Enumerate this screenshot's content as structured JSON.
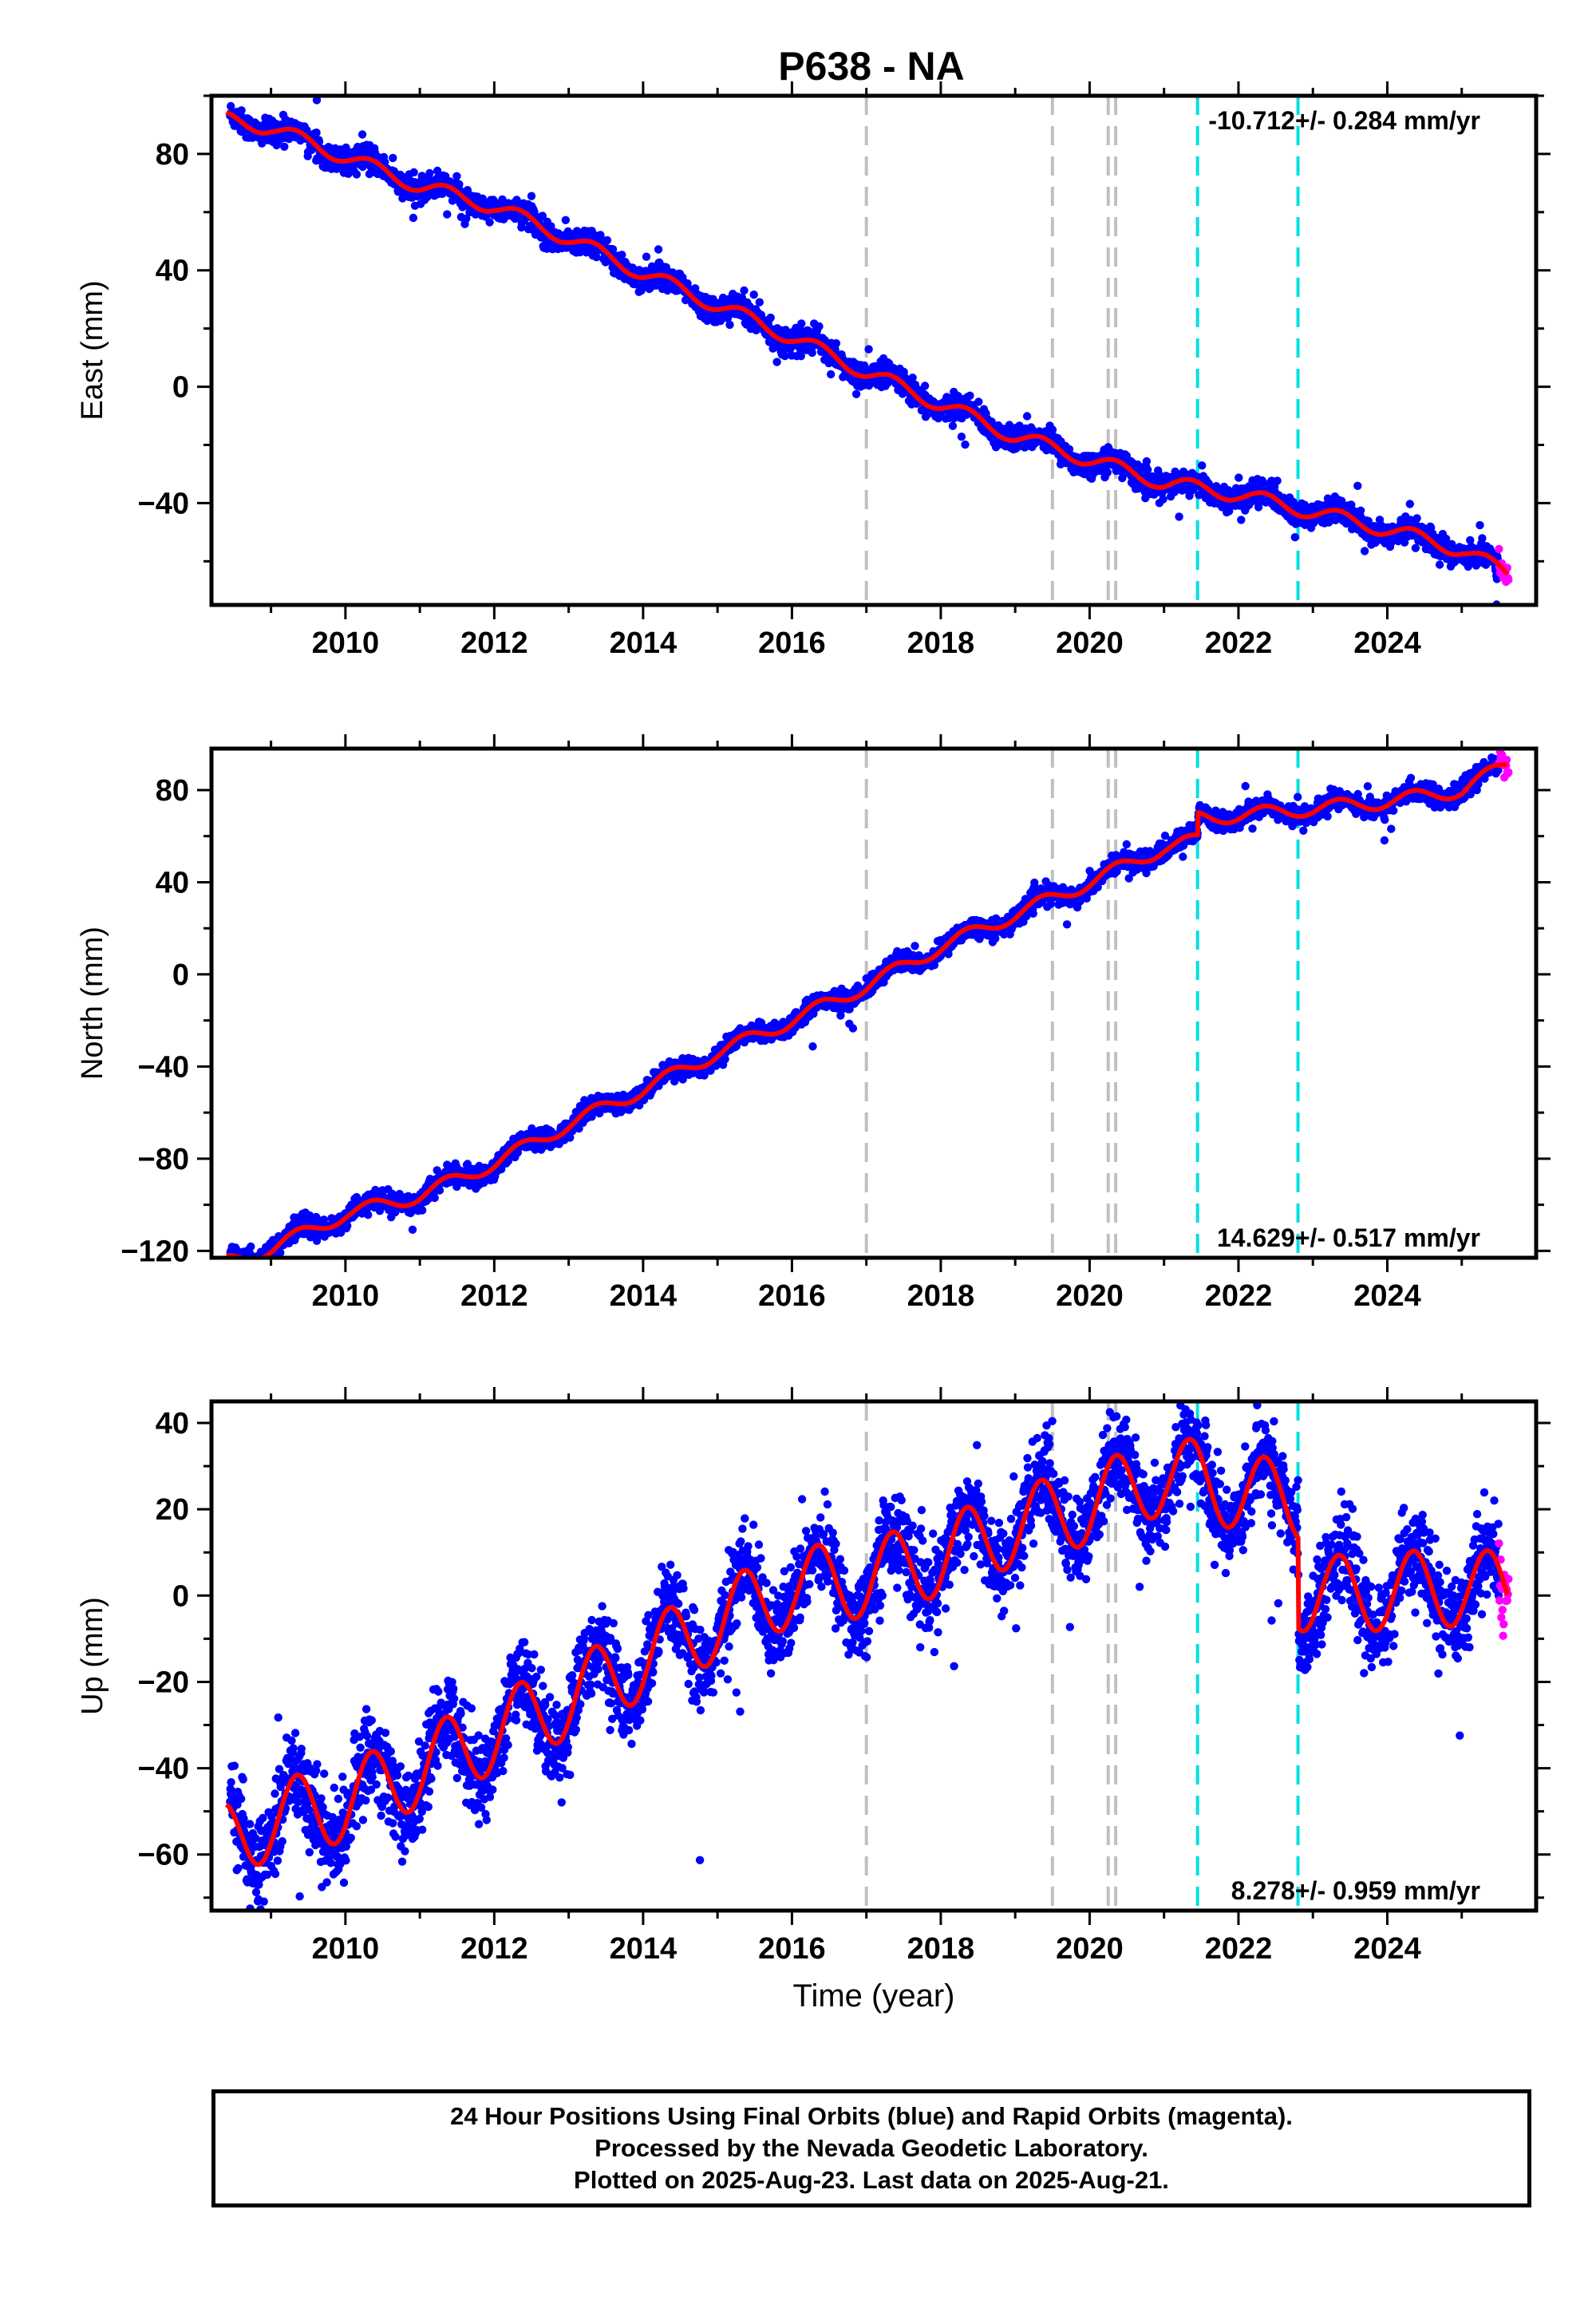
{
  "title": "P638 - NA",
  "colors": {
    "final_points": "#0000ff",
    "rapid_points": "#ff00ff",
    "model_line": "#ff0000",
    "gray_event_lines": "#c0c0c0",
    "cyan_event_lines": "#00e0e0"
  },
  "footer": {
    "line1": "24 Hour Positions Using Final Orbits (blue) and Rapid Orbits (magenta).",
    "line2": "Processed by the Nevada Geodetic Laboratory.",
    "line3": "Plotted on 2025-Aug-23. Last data on 2025-Aug-21."
  },
  "chart_data": [
    {
      "type": "scatter",
      "component": "East",
      "ylabel": "East (mm)",
      "xlabel": "",
      "xlim": [
        2008.2,
        2026.0
      ],
      "ylim": [
        -75,
        100
      ],
      "xticks": [
        "2010",
        "2012",
        "2014",
        "2016",
        "2018",
        "2020",
        "2022",
        "2024"
      ],
      "yticks": [
        "−40",
        "0",
        "40",
        "80"
      ],
      "rate_label": "-10.712+/- 0.284 mm/yr",
      "rate_position": "top-right",
      "gray_event_years": [
        2017.0,
        2019.5,
        2020.25,
        2020.35
      ],
      "cyan_event_years": [
        2021.45,
        2022.8
      ],
      "model_keypoints": {
        "x": [
          2008.4,
          2009.0,
          2010.0,
          2011.0,
          2012.0,
          2013.0,
          2014.0,
          2015.0,
          2016.0,
          2017.0,
          2018.0,
          2019.0,
          2020.0,
          2021.0,
          2022.0,
          2023.0,
          2024.0,
          2025.0,
          2025.6
        ],
        "y": [
          92,
          89,
          79,
          69,
          62,
          51,
          39,
          28,
          17,
          5,
          -6,
          -17,
          -25,
          -33,
          -37,
          -43,
          -49,
          -56,
          -64
        ]
      },
      "seasonal_amplitude_mm": 2.5,
      "scatter_noise_mm": 2.0,
      "steps": []
    },
    {
      "type": "scatter",
      "component": "North",
      "ylabel": "North (mm)",
      "xlabel": "",
      "xlim": [
        2008.2,
        2026.0
      ],
      "ylim": [
        -123,
        98
      ],
      "xticks": [
        "2010",
        "2012",
        "2014",
        "2016",
        "2018",
        "2020",
        "2022",
        "2024"
      ],
      "yticks": [
        "−120",
        "−80",
        "−40",
        "0",
        "40",
        "80"
      ],
      "rate_label": "14.629+/- 0.517 mm/yr",
      "rate_position": "bottom-right",
      "gray_event_years": [
        2017.0,
        2019.5,
        2020.25,
        2020.35
      ],
      "cyan_event_years": [
        2021.45,
        2022.8
      ],
      "model_keypoints": {
        "x": [
          2008.4,
          2009.0,
          2010.0,
          2011.0,
          2012.0,
          2013.0,
          2014.0,
          2015.0,
          2016.0,
          2017.0,
          2018.0,
          2019.0,
          2020.0,
          2021.0,
          2021.45,
          2021.46,
          2022.0,
          2023.0,
          2024.0,
          2025.0,
          2025.6
        ],
        "y": [
          -125,
          -119,
          -104,
          -96,
          -82,
          -65,
          -50,
          -34,
          -20,
          -5,
          12,
          26,
          40,
          55,
          58,
          68,
          69,
          72,
          75,
          80,
          91
        ]
      },
      "seasonal_amplitude_mm": 3.0,
      "scatter_noise_mm": 2.0,
      "steps": [
        [
          2021.45,
          10
        ]
      ]
    },
    {
      "type": "scatter",
      "component": "Up",
      "ylabel": "Up (mm)",
      "xlabel": "Time (year)",
      "xlim": [
        2008.2,
        2026.0
      ],
      "ylim": [
        -73,
        45
      ],
      "xticks": [
        "2010",
        "2012",
        "2014",
        "2016",
        "2018",
        "2020",
        "2022",
        "2024"
      ],
      "yticks": [
        "−60",
        "−40",
        "−20",
        "0",
        "20",
        "40"
      ],
      "rate_label": "8.278+/- 0.959 mm/yr",
      "rate_position": "bottom-right",
      "gray_event_years": [
        2017.0,
        2019.5,
        2020.25,
        2020.35
      ],
      "cyan_event_years": [
        2021.45,
        2022.8
      ],
      "model_keypoints": {
        "x": [
          2008.4,
          2009.0,
          2010.0,
          2011.0,
          2012.0,
          2013.0,
          2014.0,
          2015.0,
          2016.0,
          2017.0,
          2018.0,
          2019.0,
          2020.0,
          2021.0,
          2021.45,
          2022.0,
          2022.8,
          2022.81,
          2023.0,
          2024.0,
          2025.0,
          2025.6
        ],
        "y": [
          -57,
          -52,
          -48,
          -40,
          -32,
          -24,
          -15,
          -6,
          2,
          4,
          9,
          16,
          21,
          28,
          27,
          24,
          22,
          1,
          0,
          1,
          2,
          1
        ]
      },
      "seasonal_amplitude_mm": 9,
      "scatter_noise_mm": 5,
      "steps": [
        [
          2022.8,
          -21
        ]
      ]
    }
  ]
}
